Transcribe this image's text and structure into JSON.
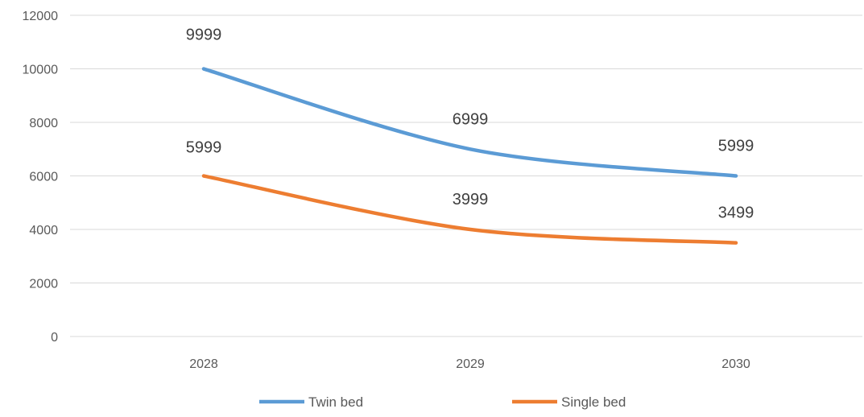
{
  "chart_data": {
    "type": "line",
    "title": "",
    "xlabel": "",
    "ylabel": "",
    "categories": [
      "2028",
      "2029",
      "2030"
    ],
    "ylim": [
      0,
      12000
    ],
    "yticks": [
      0,
      2000,
      4000,
      6000,
      8000,
      10000,
      12000
    ],
    "grid": true,
    "legend_position": "bottom",
    "series": [
      {
        "name": "Twin bed",
        "values": [
          9999,
          6999,
          5999
        ],
        "labels": [
          "9999",
          "6999",
          "5999"
        ],
        "color": "#5b9bd5"
      },
      {
        "name": "Single bed",
        "values": [
          5999,
          3999,
          3499
        ],
        "labels": [
          "5999",
          "3999",
          "3499"
        ],
        "color": "#ed7d31"
      }
    ]
  }
}
